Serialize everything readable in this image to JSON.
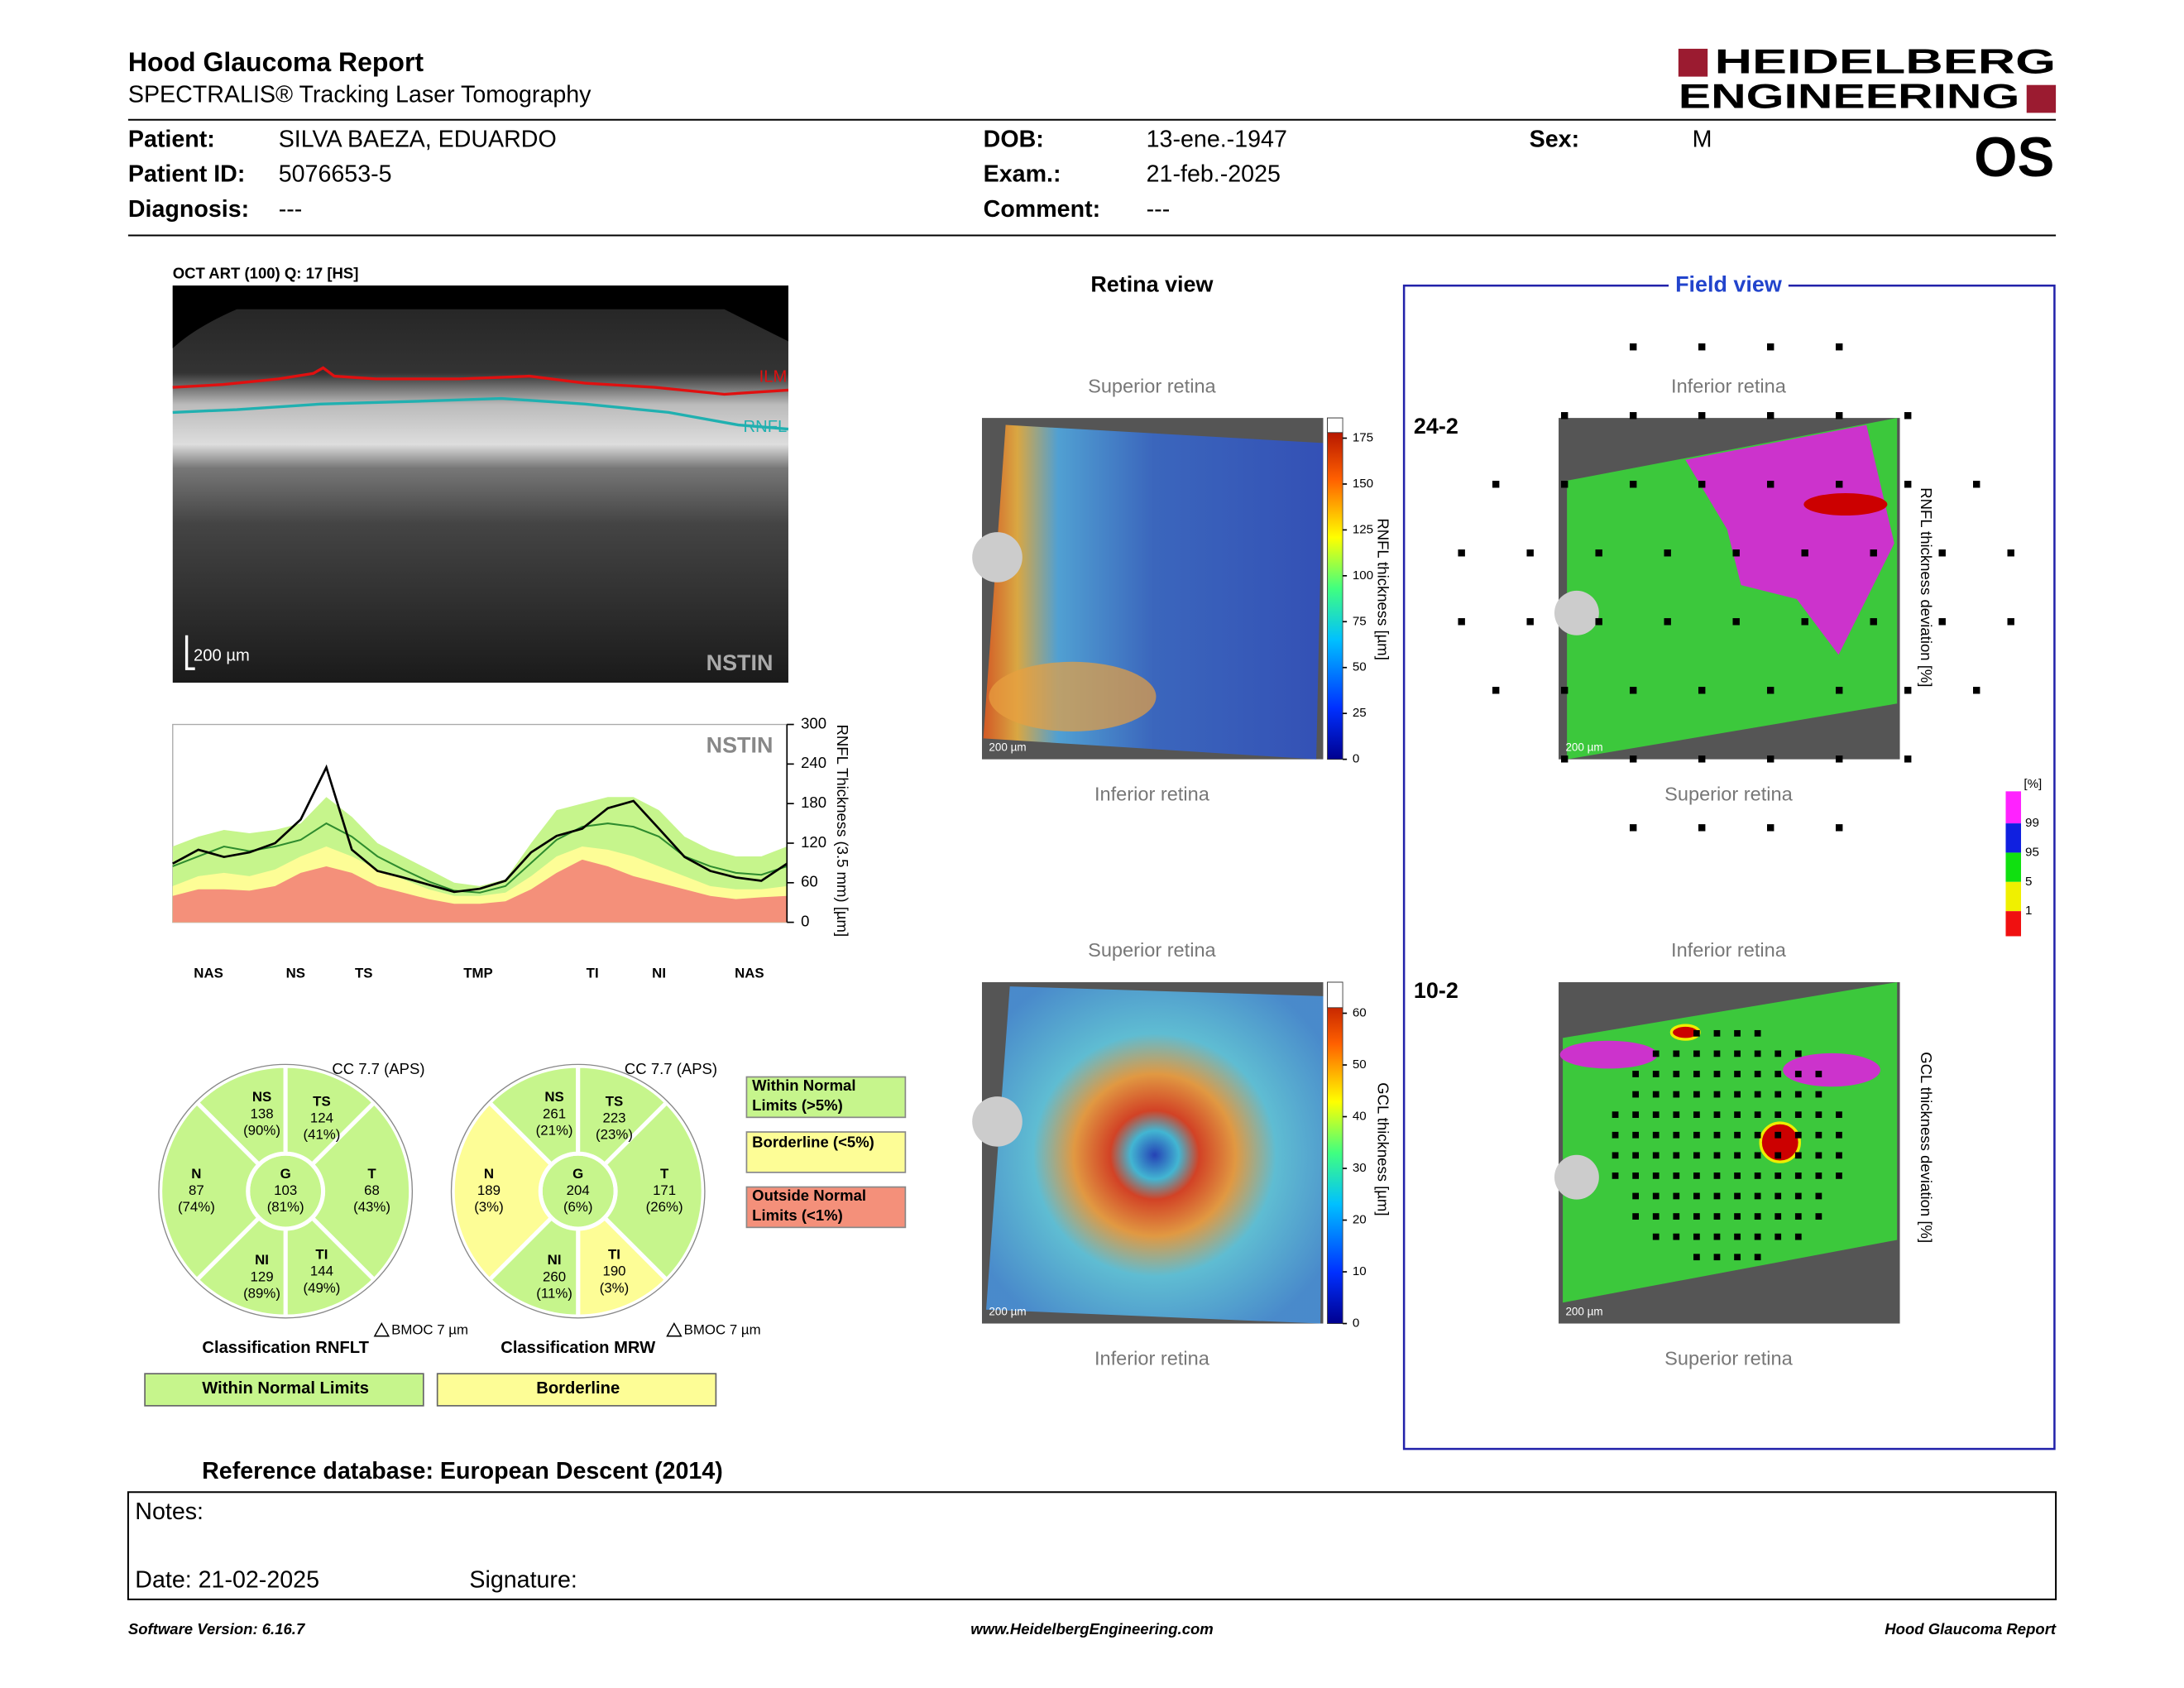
{
  "header": {
    "title": "Hood Glaucoma Report",
    "subtitle": "SPECTRALIS® Tracking Laser Tomography",
    "logo": [
      "HEIDELBERG",
      "ENGINEERING"
    ],
    "eye": "OS"
  },
  "patient": [
    {
      "label": "Patient:",
      "value": "SILVA BAEZA, EDUARDO"
    },
    {
      "label": "Patient ID:",
      "value": "5076653-5"
    },
    {
      "label": "Diagnosis:",
      "value": "---"
    },
    {
      "label": "DOB:",
      "value": "13-ene.-1947"
    },
    {
      "label": "Exam.:",
      "value": "21-feb.-2025"
    },
    {
      "label": "Comment:",
      "value": "---"
    },
    {
      "label": "Sex:",
      "value": "M"
    }
  ],
  "oct": {
    "title": "OCT ART (100) Q: 17 [HS]",
    "layers": [
      "ILM",
      "RNFL"
    ],
    "scale": "200 µm",
    "scan": "NSTIN"
  },
  "chart_data": {
    "type": "line",
    "ylabel": "RNFL Thickness (3.5 mm) [µm]",
    "annotation": "NSTIN",
    "x": [
      0,
      15,
      30,
      45,
      60,
      75,
      90,
      105,
      120,
      135,
      150,
      165,
      180,
      195,
      210,
      225,
      240,
      255,
      270,
      285,
      300,
      315,
      330,
      345,
      360
    ],
    "xlim": [
      0,
      360
    ],
    "xticks": [
      {
        "value": 21,
        "label": "NAS"
      },
      {
        "value": 72,
        "label": "NS"
      },
      {
        "value": 112,
        "label": "TS"
      },
      {
        "value": 179,
        "label": "TMP"
      },
      {
        "value": 246,
        "label": "TI"
      },
      {
        "value": 285,
        "label": "NI"
      },
      {
        "value": 338,
        "label": "NAS"
      }
    ],
    "ylim": [
      0,
      300
    ],
    "yticks": [
      0,
      60,
      120,
      180,
      240,
      300
    ],
    "series": [
      {
        "color": "#c6f58c",
        "area": true,
        "values": [
          115,
          130,
          140,
          135,
          140,
          150,
          190,
          160,
          120,
          100,
          80,
          60,
          55,
          65,
          120,
          170,
          180,
          190,
          190,
          170,
          130,
          110,
          100,
          100,
          115
        ]
      },
      {
        "color": "#fdfd96",
        "area": true,
        "values": [
          55,
          70,
          75,
          70,
          80,
          100,
          115,
          100,
          80,
          65,
          50,
          40,
          40,
          45,
          70,
          100,
          115,
          110,
          100,
          85,
          70,
          55,
          50,
          50,
          55
        ]
      },
      {
        "color": "#f4907a",
        "area": true,
        "values": [
          40,
          50,
          50,
          48,
          55,
          75,
          85,
          75,
          55,
          45,
          35,
          28,
          28,
          32,
          50,
          75,
          95,
          85,
          70,
          60,
          50,
          40,
          35,
          38,
          40
        ]
      },
      {
        "color": "#2e8b2e",
        "area": false,
        "values": [
          85,
          100,
          115,
          108,
          115,
          125,
          150,
          130,
          100,
          80,
          62,
          48,
          45,
          55,
          90,
          125,
          145,
          150,
          145,
          130,
          100,
          85,
          75,
          72,
          85
        ]
      },
      {
        "color": "#000000",
        "area": false,
        "values": [
          89,
          110,
          99,
          106,
          120,
          156,
          235,
          110,
          78,
          68,
          57,
          46,
          51,
          63,
          106,
          131,
          142,
          173,
          184,
          142,
          99,
          78,
          68,
          63,
          89
        ]
      }
    ]
  },
  "sectors": [
    {
      "cc": "CC 7.7 (APS)",
      "bmo": "BMOC 7 µm",
      "classification": "Classification RNFLT",
      "result": "Within Normal Limits",
      "result_color": "#c6f58c",
      "sectors": [
        {
          "name": "G",
          "value": 103,
          "percent": "(81%)",
          "color": "#c6f58c"
        },
        {
          "name": "NS",
          "value": 138,
          "percent": "(90%)",
          "color": "#c6f58c"
        },
        {
          "name": "TS",
          "value": 124,
          "percent": "(41%)",
          "color": "#c6f58c"
        },
        {
          "name": "T",
          "value": 68,
          "percent": "(43%)",
          "color": "#c6f58c"
        },
        {
          "name": "TI",
          "value": 144,
          "percent": "(49%)",
          "color": "#c6f58c"
        },
        {
          "name": "NI",
          "value": 129,
          "percent": "(89%)",
          "color": "#c6f58c"
        },
        {
          "name": "N",
          "value": 87,
          "percent": "(74%)",
          "color": "#c6f58c"
        }
      ]
    },
    {
      "cc": "CC 7.7 (APS)",
      "bmo": "BMOC 7 µm",
      "classification": "Classification MRW",
      "result": "Borderline",
      "result_color": "#fdfd96",
      "sectors": [
        {
          "name": "G",
          "value": 204,
          "percent": "(6%)",
          "color": "#c6f58c"
        },
        {
          "name": "NS",
          "value": 261,
          "percent": "(21%)",
          "color": "#c6f58c"
        },
        {
          "name": "TS",
          "value": 223,
          "percent": "(23%)",
          "color": "#c6f58c"
        },
        {
          "name": "T",
          "value": 171,
          "percent": "(26%)",
          "color": "#c6f58c"
        },
        {
          "name": "TI",
          "value": 190,
          "percent": "(3%)",
          "color": "#fdfd96"
        },
        {
          "name": "NI",
          "value": 260,
          "percent": "(11%)",
          "color": "#c6f58c"
        },
        {
          "name": "N",
          "value": 189,
          "percent": "(3%)",
          "color": "#fdfd96"
        }
      ]
    }
  ],
  "classes": [
    {
      "lines": [
        "Within Normal",
        "Limits (>5%)"
      ],
      "color": "#c6f58c"
    },
    {
      "lines": [
        "Borderline (<5%)"
      ],
      "color": "#fdfd96"
    },
    {
      "lines": [
        "Outside Normal",
        "Limits (<1%)"
      ],
      "color": "#f4907a"
    }
  ],
  "retina_view": {
    "title": "Retina view",
    "maps": [
      {
        "top": "Superior retina",
        "bottom": "Inferior retina",
        "scale": "200 µm",
        "label": "RNFL thickness [µm]",
        "lim": [
          0,
          186
        ],
        "ticks": [
          0,
          25,
          50,
          75,
          100,
          125,
          150,
          175
        ]
      },
      {
        "top": "Superior retina",
        "bottom": "Inferior retina",
        "scale": "200 µm",
        "label": "GCL thickness [µm]",
        "lim": [
          0,
          66
        ],
        "ticks": [
          0,
          10,
          20,
          30,
          40,
          50,
          60
        ]
      }
    ]
  },
  "field_view": {
    "title": "Field view",
    "maps": [
      {
        "grid": "24-2",
        "top": "Inferior retina",
        "bottom": "Superior retina",
        "scale": "200 µm",
        "label": "RNFL thickness deviation [%]"
      },
      {
        "grid": "10-2",
        "top": "Inferior retina",
        "bottom": "Superior retina",
        "scale": "200 µm",
        "label": "GCL thickness deviation [%]"
      }
    ],
    "legend": {
      "unit": "[%]",
      "ticks": [
        99,
        95,
        5,
        1
      ]
    }
  },
  "reference": "Reference database: European Descent (2014)",
  "notes": {
    "notes": "Notes:",
    "date": "Date: 21-02-2025",
    "signature": "Signature:"
  },
  "footer": [
    "Software Version: 6.16.7",
    "www.HeidelbergEngineering.com",
    "Hood Glaucoma Report"
  ]
}
